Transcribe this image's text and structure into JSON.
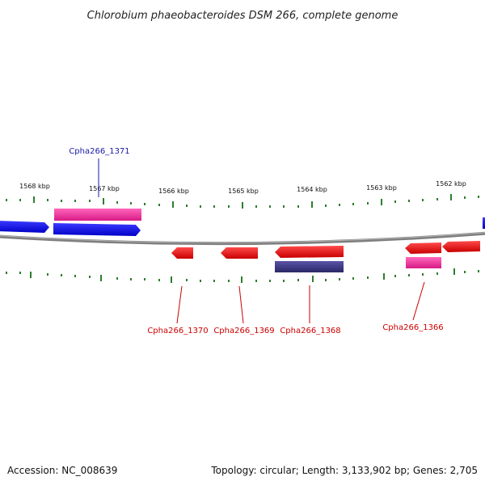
{
  "title": "Chlorobium phaeobacteroides DSM 266, complete genome",
  "footer": {
    "accession": "Accession: NC_008639",
    "summary": "Topology: circular; Length: 3,133,902 bp; Genes: 2,705"
  },
  "ticks": [
    "1568 kbp",
    "1567 kbp",
    "1566 kbp",
    "1565 kbp",
    "1564 kbp",
    "1563 kbp",
    "1562 kbp"
  ],
  "gene_labels": [
    {
      "text": "Cpha266_1371",
      "color": "#1a1aa6"
    },
    {
      "text": "Cpha266_1370",
      "color": "#cc0000"
    },
    {
      "text": "Cpha266_1369",
      "color": "#cc0000"
    },
    {
      "text": "Cpha266_1368",
      "color": "#cc0000"
    },
    {
      "text": "Cpha266_1366",
      "color": "#cc0000"
    }
  ],
  "colors": {
    "forward_gene": "#1010ee",
    "reverse_gene": "#ee1111",
    "rna_feature": "#ee3399",
    "other_feature": "#3f3a80",
    "backbone": "#888888",
    "tick": "#2e7d2e"
  }
}
